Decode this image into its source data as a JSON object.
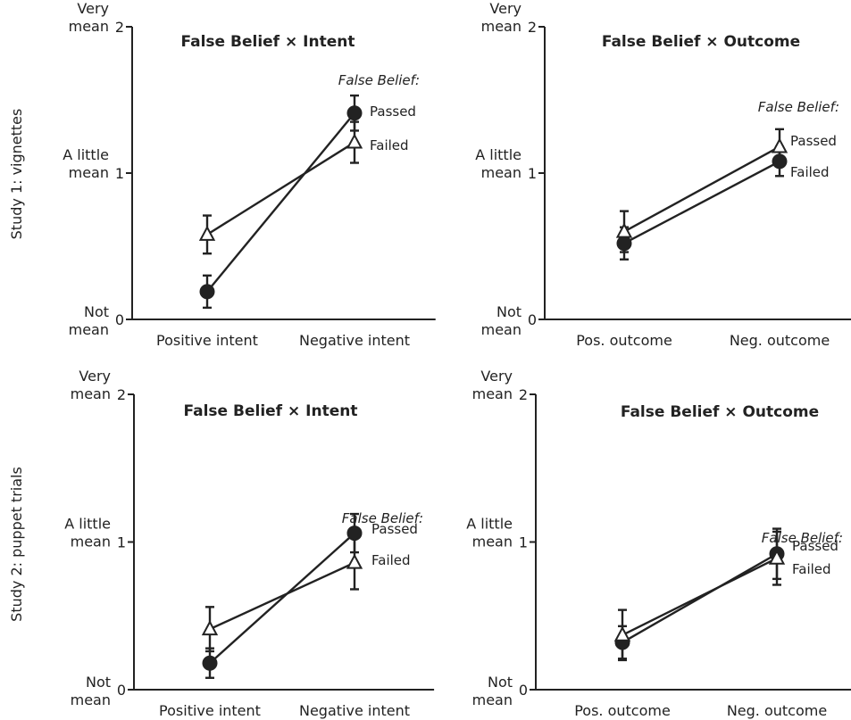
{
  "row_labels": [
    "Study 1: vignettes",
    "Study 2: puppet trials"
  ],
  "legend_title": "False Belief:",
  "colors": {
    "ink": "#222222",
    "background": "#ffffff"
  },
  "chart_data": [
    {
      "type": "line",
      "title": "False Belief × Intent",
      "categories": [
        "Positive intent",
        "Negative intent"
      ],
      "ylim": [
        0,
        2
      ],
      "yticks": [
        {
          "value": 0,
          "number": "0",
          "words": [
            "Not",
            "mean"
          ]
        },
        {
          "value": 1,
          "number": "1",
          "words": [
            "A little",
            "mean"
          ]
        },
        {
          "value": 2,
          "number": "2",
          "words": [
            "Very",
            "mean"
          ]
        }
      ],
      "legend_title": "False Belief:",
      "series": [
        {
          "name": "Passed",
          "marker": "circle",
          "values": [
            0.19,
            1.41
          ],
          "errors": [
            0.11,
            0.12
          ]
        },
        {
          "name": "Failed",
          "marker": "triangle",
          "values": [
            0.58,
            1.21
          ],
          "errors": [
            0.13,
            0.14
          ]
        }
      ]
    },
    {
      "type": "line",
      "title": "False Belief × Outcome",
      "categories": [
        "Pos. outcome",
        "Neg. outcome"
      ],
      "ylim": [
        0,
        2
      ],
      "yticks": [
        {
          "value": 0,
          "number": "0",
          "words": [
            "Not",
            "mean"
          ]
        },
        {
          "value": 1,
          "number": "1",
          "words": [
            "A little",
            "mean"
          ]
        },
        {
          "value": 2,
          "number": "2",
          "words": [
            "Very",
            "mean"
          ]
        }
      ],
      "legend_title": "False Belief:",
      "series": [
        {
          "name": "Passed",
          "marker": "circle",
          "values": [
            0.52,
            1.08
          ],
          "errors": [
            0.11,
            0.1
          ]
        },
        {
          "name": "Failed",
          "marker": "triangle",
          "values": [
            0.6,
            1.18
          ],
          "errors": [
            0.14,
            0.12
          ]
        }
      ]
    },
    {
      "type": "line",
      "title": "False Belief × Intent",
      "categories": [
        "Positive intent",
        "Negative intent"
      ],
      "ylim": [
        0,
        2
      ],
      "yticks": [
        {
          "value": 0,
          "number": "0",
          "words": [
            "Not",
            "mean"
          ]
        },
        {
          "value": 1,
          "number": "1",
          "words": [
            "A little",
            "mean"
          ]
        },
        {
          "value": 2,
          "number": "2",
          "words": [
            "Very",
            "mean"
          ]
        }
      ],
      "legend_title": "False Belief:",
      "series": [
        {
          "name": "Passed",
          "marker": "circle",
          "values": [
            0.18,
            1.06
          ],
          "errors": [
            0.1,
            0.13
          ]
        },
        {
          "name": "Failed",
          "marker": "triangle",
          "values": [
            0.41,
            0.86
          ],
          "errors": [
            0.15,
            0.18
          ]
        }
      ]
    },
    {
      "type": "line",
      "title": "False Belief × Outcome",
      "categories": [
        "Pos. outcome",
        "Neg. outcome"
      ],
      "ylim": [
        0,
        2
      ],
      "yticks": [
        {
          "value": 0,
          "number": "0",
          "words": [
            "Not",
            "mean"
          ]
        },
        {
          "value": 1,
          "number": "1",
          "words": [
            "A little",
            "mean"
          ]
        },
        {
          "value": 2,
          "number": "2",
          "words": [
            "Very",
            "mean"
          ]
        }
      ],
      "legend_title": "False Belief:",
      "series": [
        {
          "name": "Passed",
          "marker": "circle",
          "values": [
            0.32,
            0.92
          ],
          "errors": [
            0.11,
            0.17
          ]
        },
        {
          "name": "Failed",
          "marker": "triangle",
          "values": [
            0.37,
            0.89
          ],
          "errors": [
            0.17,
            0.18
          ]
        }
      ]
    }
  ]
}
